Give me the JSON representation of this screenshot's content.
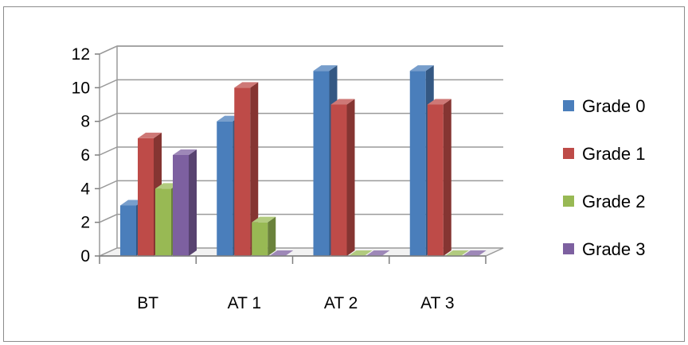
{
  "chart_data": {
    "type": "bar",
    "style": "3d-clustered-column",
    "categories": [
      "BT",
      "AT 1",
      "AT 2",
      "AT 3"
    ],
    "series": [
      {
        "name": "Grade 0",
        "color": "#4a7ebb",
        "values": [
          3,
          8,
          11,
          11
        ]
      },
      {
        "name": "Grade 1",
        "color": "#be4b48",
        "values": [
          7,
          10,
          9,
          9
        ]
      },
      {
        "name": "Grade 2",
        "color": "#98b954",
        "values": [
          4,
          2,
          0,
          0
        ]
      },
      {
        "name": "Grade 3",
        "color": "#7d60a0",
        "values": [
          6,
          0,
          0,
          0
        ]
      }
    ],
    "ylim": [
      0,
      12
    ],
    "yticks": [
      0,
      2,
      4,
      6,
      8,
      10,
      12
    ],
    "grid": true,
    "legend_position": "right"
  }
}
